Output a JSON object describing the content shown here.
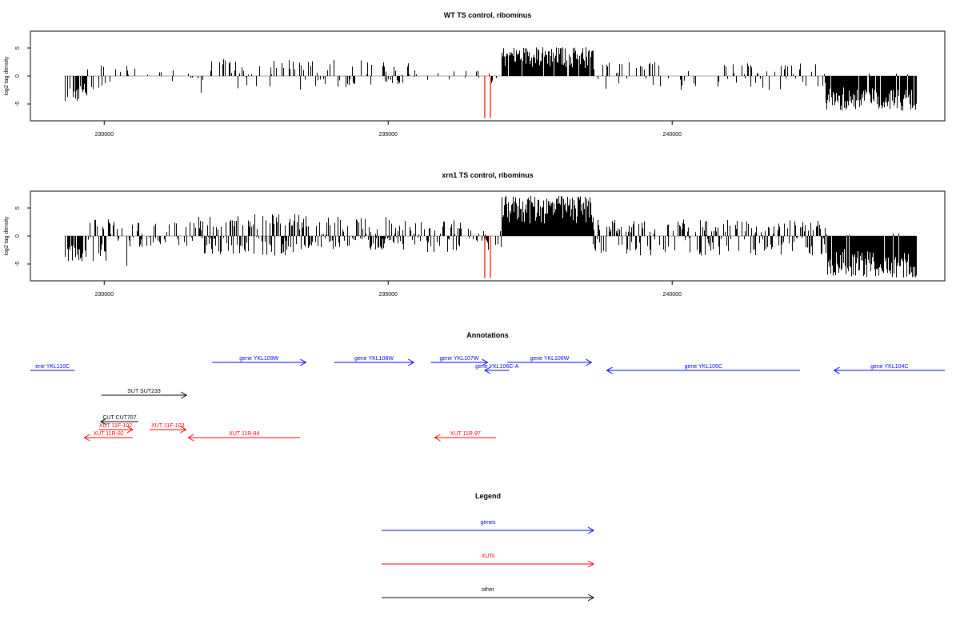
{
  "colors": {
    "gene": "#0000ff",
    "xut": "#ff0000",
    "other": "#000000",
    "highlight": "#ff0000",
    "axis": "#000000",
    "zero_line": "#888888"
  },
  "chart_data": [
    {
      "type": "bar",
      "title": "WT TS control, ribominus",
      "ylabel": "log2 tag density",
      "xlabel": "",
      "xlim": [
        228700,
        244800
      ],
      "ylim": [
        -8,
        8
      ],
      "x_ticks": [
        230000,
        235000,
        240000
      ],
      "x_tick_labels": [
        "230000",
        "235000",
        "240000"
      ],
      "y_ticks": [
        -5,
        0,
        5
      ],
      "y_tick_labels": [
        "-5",
        "0",
        "5"
      ],
      "highlight_bars": [
        {
          "x": 236700,
          "value": -7.5
        },
        {
          "x": 236800,
          "value": -7.5
        }
      ],
      "regions": [
        {
          "start": 229300,
          "end": 229700,
          "density": 0.6,
          "min": -4.5,
          "max": 0
        },
        {
          "start": 229700,
          "end": 230400,
          "density": 0.25,
          "min": -3.5,
          "max": 2
        },
        {
          "start": 230400,
          "end": 231650,
          "density": 0.1,
          "min": -1,
          "max": 1.5
        },
        {
          "start": 231650,
          "end": 233600,
          "density": 0.35,
          "min": -3,
          "max": 3
        },
        {
          "start": 233600,
          "end": 235500,
          "density": 0.3,
          "min": -2,
          "max": 3
        },
        {
          "start": 235500,
          "end": 236400,
          "density": 0.08,
          "min": -1,
          "max": 1
        },
        {
          "start": 236400,
          "end": 236650,
          "density": 0.15,
          "min": -0.5,
          "max": 1.5
        },
        {
          "start": 236650,
          "end": 237000,
          "density": 0.1,
          "min": -1.5,
          "max": 0.5
        },
        {
          "start": 237000,
          "end": 238600,
          "density": 0.9,
          "min": 0,
          "max": 5.2
        },
        {
          "start": 238600,
          "end": 242700,
          "density": 0.25,
          "min": -2.5,
          "max": 2.5
        },
        {
          "start": 242700,
          "end": 244300,
          "density": 0.95,
          "min": -6.2,
          "max": 0.5
        }
      ]
    },
    {
      "type": "bar",
      "title": "xrn1 TS control, ribominus",
      "ylabel": "log2 tag density",
      "xlabel": "",
      "xlim": [
        228700,
        244800
      ],
      "ylim": [
        -8,
        8
      ],
      "x_ticks": [
        230000,
        235000,
        240000
      ],
      "x_tick_labels": [
        "230000",
        "235000",
        "240000"
      ],
      "y_ticks": [
        -5,
        0,
        5
      ],
      "y_tick_labels": [
        "-5",
        "0",
        "5"
      ],
      "highlight_bars": [
        {
          "x": 236700,
          "value": -7.5
        },
        {
          "x": 236800,
          "value": -7.5
        }
      ],
      "regions": [
        {
          "start": 229300,
          "end": 229700,
          "density": 0.7,
          "min": -4.5,
          "max": 0
        },
        {
          "start": 229700,
          "end": 230400,
          "density": 0.5,
          "min": -5.5,
          "max": 3
        },
        {
          "start": 230400,
          "end": 231650,
          "density": 0.35,
          "min": -2,
          "max": 2.5
        },
        {
          "start": 231650,
          "end": 233600,
          "density": 0.7,
          "min": -3.5,
          "max": 4
        },
        {
          "start": 233600,
          "end": 235500,
          "density": 0.6,
          "min": -2.5,
          "max": 3.5
        },
        {
          "start": 235500,
          "end": 236400,
          "density": 0.5,
          "min": -3,
          "max": 3
        },
        {
          "start": 236400,
          "end": 236650,
          "density": 0.3,
          "min": -1,
          "max": 2
        },
        {
          "start": 236650,
          "end": 237000,
          "density": 0.3,
          "min": -2.5,
          "max": 1
        },
        {
          "start": 237000,
          "end": 238600,
          "density": 1.0,
          "min": 0,
          "max": 7.2
        },
        {
          "start": 238600,
          "end": 242700,
          "density": 0.55,
          "min": -3.5,
          "max": 3
        },
        {
          "start": 242700,
          "end": 244300,
          "density": 1.0,
          "min": -7.5,
          "max": 0.5
        }
      ]
    }
  ],
  "annotations": {
    "title": "Annotations",
    "features": [
      {
        "label": "ene YKL110C",
        "start": 228700,
        "end": 229480,
        "strand": "+",
        "type": "gene",
        "row": 2,
        "arrow": false
      },
      {
        "label": "gene YKL109W",
        "start": 231900,
        "end": 233550,
        "strand": "+",
        "type": "gene",
        "row": 1,
        "arrow": true
      },
      {
        "label": "gene YKL108W",
        "start": 234050,
        "end": 235450,
        "strand": "+",
        "type": "gene",
        "row": 1,
        "arrow": true
      },
      {
        "label": "gene YKL107W",
        "start": 235750,
        "end": 236750,
        "strand": "+",
        "type": "gene",
        "row": 1,
        "arrow": true
      },
      {
        "label": "gene YKL106C-A",
        "start": 236700,
        "end": 237130,
        "strand": "-",
        "type": "gene",
        "row": 2,
        "arrow": true
      },
      {
        "label": "gene YKL106W",
        "start": 237100,
        "end": 238580,
        "strand": "+",
        "type": "gene",
        "row": 1,
        "arrow": true
      },
      {
        "label": "gene YKL105C",
        "start": 238850,
        "end": 242250,
        "strand": "-",
        "type": "gene",
        "row": 2,
        "arrow": true
      },
      {
        "label": "gene YKL104C",
        "start": 242850,
        "end": 244800,
        "strand": "-",
        "type": "gene",
        "row": 2,
        "arrow": true
      },
      {
        "label": "SUT SUT233",
        "start": 229950,
        "end": 231450,
        "strand": "+",
        "type": "other",
        "row": 3,
        "arrow": true
      },
      {
        "label": "CUT CUT707",
        "start": 229940,
        "end": 230600,
        "strand": "-",
        "type": "other",
        "row": 4,
        "arrow": true
      },
      {
        "label": "XUT 11F-102",
        "start": 229900,
        "end": 230500,
        "strand": "+",
        "type": "xut",
        "row": 5,
        "arrow": true
      },
      {
        "label": "XUT 11F-103",
        "start": 230800,
        "end": 231440,
        "strand": "+",
        "type": "xut",
        "row": 5,
        "arrow": true
      },
      {
        "label": "XUT 11R-92",
        "start": 229650,
        "end": 230500,
        "strand": "-",
        "type": "xut",
        "row": 6,
        "arrow": true
      },
      {
        "label": "XUT 11R-94",
        "start": 231480,
        "end": 233450,
        "strand": "-",
        "type": "xut",
        "row": 6,
        "arrow": true
      },
      {
        "label": "XUT 11R-97",
        "start": 235820,
        "end": 236900,
        "strand": "-",
        "type": "xut",
        "row": 6,
        "arrow": true
      }
    ]
  },
  "legend": {
    "title": "Legend",
    "items": [
      {
        "label": "genes",
        "type": "gene"
      },
      {
        "label": "XUTs",
        "type": "xut"
      },
      {
        "label": "other",
        "type": "other"
      }
    ]
  }
}
